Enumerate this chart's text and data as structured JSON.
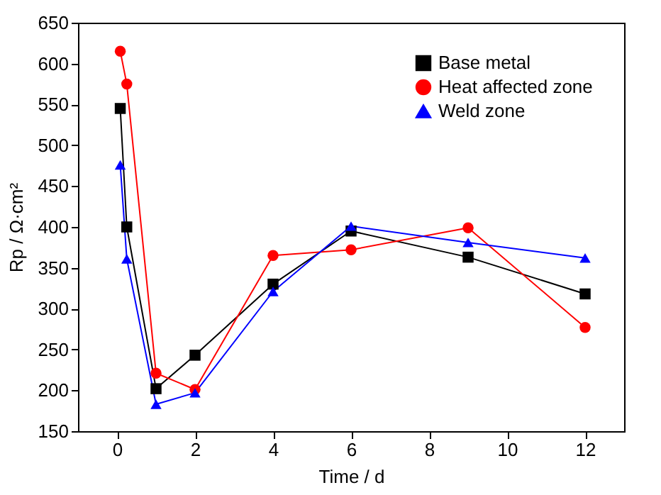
{
  "chart_data": {
    "type": "line",
    "xlabel": "Time / d",
    "ylabel": "Rp / Ω·cm²",
    "x": [
      0.083,
      0.25,
      1,
      2,
      4,
      6,
      9,
      12
    ],
    "xlim": [
      -1,
      13
    ],
    "xticks": [
      0,
      2,
      4,
      6,
      8,
      10,
      12
    ],
    "ylim": [
      150,
      650
    ],
    "yticks": [
      150,
      200,
      250,
      300,
      350,
      400,
      450,
      500,
      550,
      600,
      650
    ],
    "grid": false,
    "legend": "top right",
    "line_style": "solid",
    "series": [
      {
        "name": "Base metal",
        "color": "#000000",
        "marker": "square",
        "values": [
          545,
          400,
          202,
          243,
          330,
          395,
          363,
          318
        ]
      },
      {
        "name": "Heat affected zone",
        "color": "#ff0000",
        "marker": "circle",
        "values": [
          615,
          575,
          221,
          201,
          365,
          372,
          399,
          277
        ]
      },
      {
        "name": "Weld zone",
        "color": "#0000ff",
        "marker": "triangle",
        "values": [
          476,
          361,
          183,
          197,
          321,
          401,
          381,
          362
        ]
      }
    ]
  }
}
